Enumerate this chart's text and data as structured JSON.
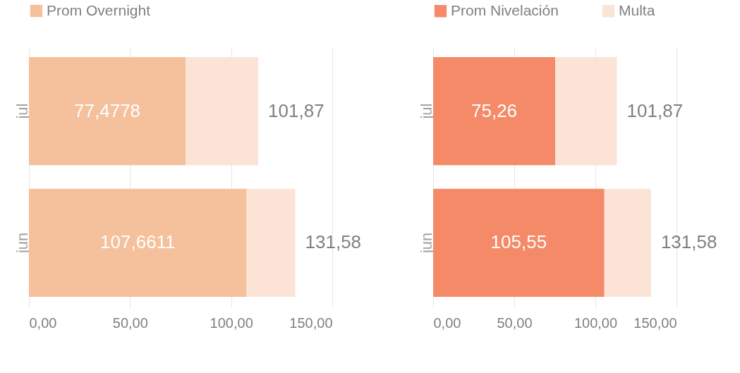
{
  "chart_data": [
    {
      "type": "bar",
      "orientation": "horizontal",
      "stacked": true,
      "categories": [
        "jul",
        "jun"
      ],
      "series": [
        {
          "name": "Prom Overnight",
          "color": "#f5c09c",
          "values": [
            77.4778,
            107.6611
          ],
          "value_labels": [
            "77,4778",
            "107,6611"
          ]
        },
        {
          "color": "#fbe4d6",
          "values": [
            35.9,
            24.0
          ]
        }
      ],
      "annotations": [
        {
          "text": "101,87",
          "x": 113.4,
          "y": "jul"
        },
        {
          "text": "131,58",
          "x": 131.7,
          "y": "jun"
        }
      ],
      "xlim": [
        0,
        150
      ],
      "xticks": [
        {
          "value": 0,
          "label": "0,00"
        },
        {
          "value": 50,
          "label": "50,00"
        },
        {
          "value": 100,
          "label": "100,00"
        },
        {
          "value": 150,
          "label": "150,00"
        }
      ],
      "grid": "x",
      "legend": "top"
    },
    {
      "type": "bar",
      "orientation": "horizontal",
      "stacked": true,
      "categories": [
        "jul",
        "jun"
      ],
      "series": [
        {
          "name": "Prom Nivelación",
          "color": "#f58a68",
          "values": [
            75.26,
            105.55
          ],
          "value_labels": [
            "75,26",
            "105,55"
          ]
        },
        {
          "name": "Multa",
          "color": "#fbe4d6",
          "values": [
            38.0,
            28.7
          ]
        }
      ],
      "annotations": [
        {
          "text": "101,87",
          "x": 113.3,
          "y": "jul"
        },
        {
          "text": "131,58",
          "x": 134.3,
          "y": "jun"
        }
      ],
      "xlim": [
        0,
        150
      ],
      "xticks": [
        {
          "value": 0,
          "label": "0,00"
        },
        {
          "value": 50,
          "label": "50,00"
        },
        {
          "value": 100,
          "label": "100,00"
        },
        {
          "value": 150,
          "label": "150,00"
        }
      ],
      "grid": "x",
      "legend": "top"
    }
  ]
}
